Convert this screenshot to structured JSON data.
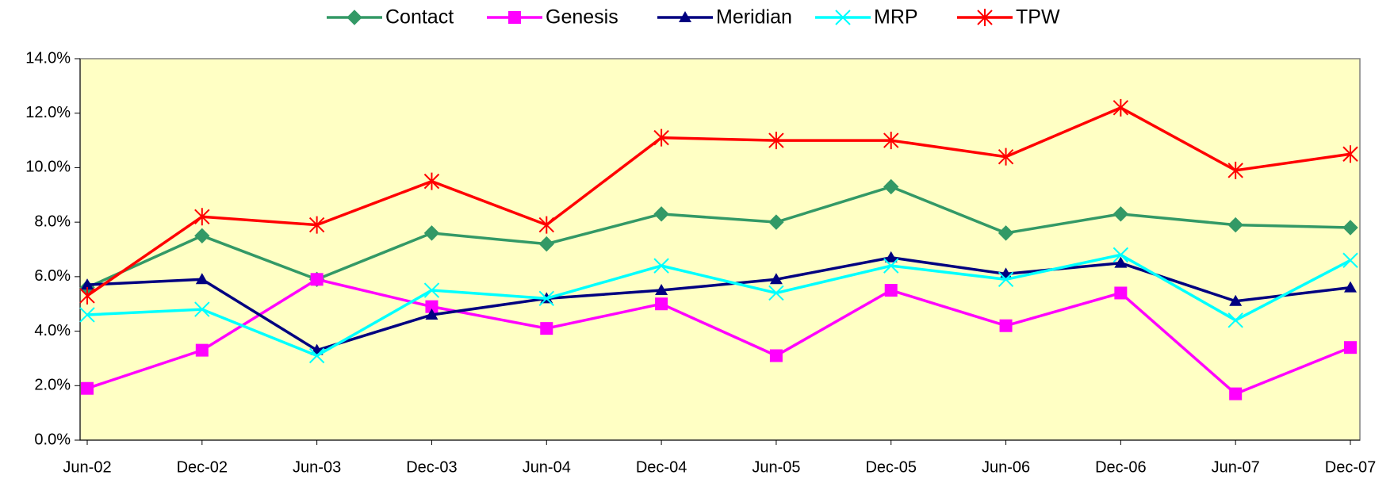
{
  "chart_data": {
    "type": "line",
    "categories": [
      "Jun-02",
      "Dec-02",
      "Jun-03",
      "Dec-03",
      "Jun-04",
      "Dec-04",
      "Jun-05",
      "Dec-05",
      "Jun-06",
      "Dec-06",
      "Jun-07",
      "Dec-07"
    ],
    "series": [
      {
        "name": "Contact",
        "color": "#339966",
        "marker": "diamond",
        "values": [
          5.6,
          7.5,
          5.9,
          7.6,
          7.2,
          8.3,
          8.0,
          9.3,
          7.6,
          8.3,
          7.9,
          7.8
        ]
      },
      {
        "name": "Genesis",
        "color": "#ff00ff",
        "marker": "square",
        "values": [
          1.9,
          3.3,
          5.9,
          4.9,
          4.1,
          5.0,
          3.1,
          5.5,
          4.2,
          5.4,
          1.7,
          3.4
        ]
      },
      {
        "name": "Meridian",
        "color": "#000080",
        "marker": "triangle",
        "values": [
          5.7,
          5.9,
          3.3,
          4.6,
          5.2,
          5.5,
          5.9,
          6.7,
          6.1,
          6.5,
          5.1,
          5.6
        ]
      },
      {
        "name": "MRP",
        "color": "#00ffff",
        "marker": "x",
        "values": [
          4.6,
          4.8,
          3.1,
          5.5,
          5.2,
          6.4,
          5.4,
          6.4,
          5.9,
          6.8,
          4.4,
          6.6
        ]
      },
      {
        "name": "TPW",
        "color": "#ff0000",
        "marker": "star",
        "values": [
          5.3,
          8.2,
          7.9,
          9.5,
          7.9,
          11.1,
          11.0,
          11.0,
          10.4,
          12.2,
          9.9,
          10.5
        ]
      }
    ],
    "ylim": [
      0,
      14
    ],
    "yticks": [
      {
        "value": 0,
        "label": "0.0%"
      },
      {
        "value": 2,
        "label": "2.0%"
      },
      {
        "value": 4,
        "label": "4.0%"
      },
      {
        "value": 6,
        "label": "6.0%"
      },
      {
        "value": 8,
        "label": "8.0%"
      },
      {
        "value": 10,
        "label": "10.0%"
      },
      {
        "value": 12,
        "label": "12.0%"
      },
      {
        "value": 14,
        "label": "14.0%"
      }
    ],
    "grid": false,
    "legend": "top",
    "plot_background": "#ffffc4"
  }
}
